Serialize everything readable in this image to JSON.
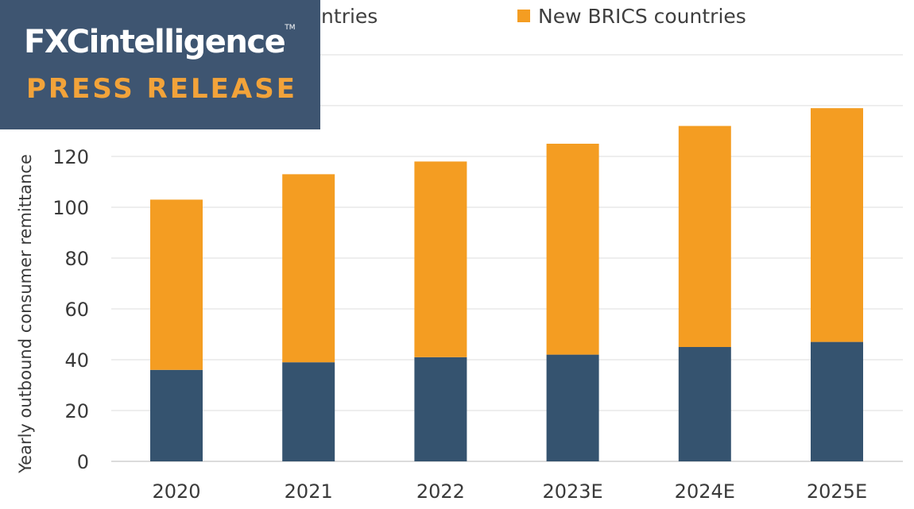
{
  "badge": {
    "brand": "FXCintelligence",
    "trademark": "TM",
    "subtitle": "PRESS RELEASE"
  },
  "colors": {
    "badge_bg": "#3e5571",
    "accent_orange": "#f2a33a",
    "series_original": "#35536f",
    "series_new": "#f49d22",
    "grid": "#e9e9e9"
  },
  "chart_data": {
    "type": "bar",
    "stacked": true,
    "categories": [
      "2020",
      "2021",
      "2022",
      "2023E",
      "2024E",
      "2025E"
    ],
    "series": [
      {
        "name": "BRICS countries",
        "color": "#35536f",
        "values": [
          36,
          39,
          41,
          42,
          45,
          47
        ]
      },
      {
        "name": "New BRICS countries",
        "color": "#f49d22",
        "values": [
          67,
          74,
          77,
          83,
          87,
          92
        ]
      }
    ],
    "ylabel": "Yearly outbound consumer remittance",
    "yticks": [
      0,
      20,
      40,
      60,
      80,
      100,
      120
    ],
    "ylim": [
      0,
      160
    ],
    "grid": true,
    "legend": "top"
  }
}
